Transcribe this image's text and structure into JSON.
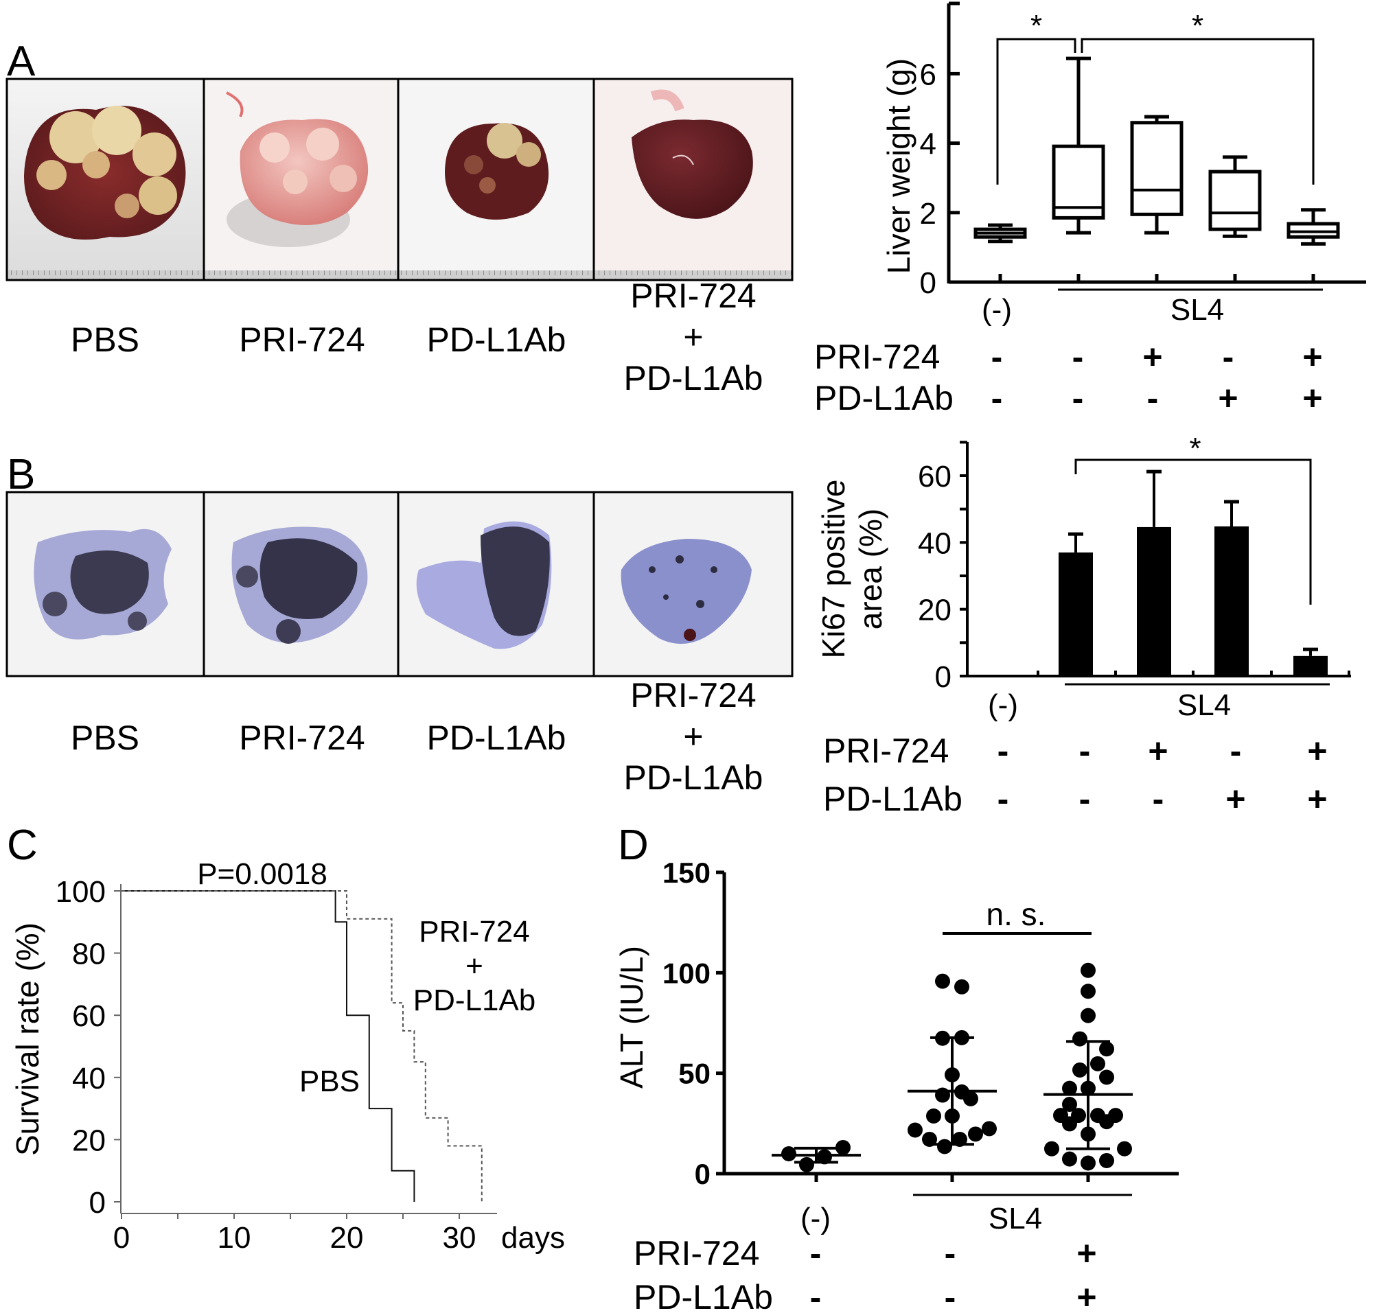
{
  "panels": {
    "a": "A",
    "b": "B",
    "c": "C",
    "d": "D"
  },
  "photos_a": {
    "labels": [
      "PBS",
      "PRI-724",
      "PD-L1Ab"
    ],
    "combo": [
      "PRI-724",
      "+",
      "PD-L1Ab"
    ]
  },
  "photos_b": {
    "labels": [
      "PBS",
      "PRI-724",
      "PD-L1Ab"
    ],
    "combo": [
      "PRI-724",
      "+",
      "PD-L1Ab"
    ]
  },
  "chart_data": [
    {
      "type": "box",
      "ylabel": "Liver weight (g)",
      "ylim": [
        0,
        8
      ],
      "yticks": [
        0,
        2,
        4,
        6
      ],
      "boxes": [
        {
          "min": 1.17,
          "q1": 1.3,
          "median": 1.41,
          "q3": 1.52,
          "max": 1.64
        },
        {
          "min": 1.42,
          "q1": 1.85,
          "median": 2.15,
          "q3": 3.91,
          "max": 6.44
        },
        {
          "min": 1.42,
          "q1": 1.95,
          "median": 2.65,
          "q3": 4.59,
          "max": 4.76
        },
        {
          "min": 1.32,
          "q1": 1.52,
          "median": 1.99,
          "q3": 3.18,
          "max": 3.6
        },
        {
          "min": 1.1,
          "q1": 1.3,
          "median": 1.45,
          "q3": 1.68,
          "max": 2.08
        }
      ],
      "group_labels": {
        "control": "(-)",
        "treated": "SL4"
      },
      "treatments": [
        {
          "name": "PRI-724",
          "values": [
            "-",
            "-",
            "+",
            "-",
            "+"
          ]
        },
        {
          "name": "PD-L1Ab",
          "values": [
            "-",
            "-",
            "-",
            "+",
            "+"
          ]
        }
      ],
      "significance": [
        {
          "from": 0,
          "to": 1,
          "label": "*"
        },
        {
          "from": 1,
          "to": 4,
          "label": "*"
        }
      ]
    },
    {
      "type": "bar",
      "ylabel": [
        "Ki67 positive",
        "area (%)"
      ],
      "ylim": [
        0,
        70
      ],
      "yticks": [
        0,
        20,
        40,
        60
      ],
      "values": [
        0,
        37,
        44.6,
        44.8,
        6
      ],
      "error_upper": [
        0,
        42.5,
        61.2,
        52.2,
        8
      ],
      "group_labels": {
        "control": "(-)",
        "treated": "SL4"
      },
      "treatments": [
        {
          "name": "PRI-724",
          "values": [
            "-",
            "-",
            "+",
            "-",
            "+"
          ]
        },
        {
          "name": "PD-L1Ab",
          "values": [
            "-",
            "-",
            "-",
            "+",
            "+"
          ]
        }
      ],
      "significance": [
        {
          "from": 1,
          "to": 4,
          "label": "*"
        }
      ]
    },
    {
      "type": "line",
      "subtype": "kaplan-meier step",
      "ylabel": "Survival rate (%)",
      "xlabel": "days",
      "xlim": [
        0,
        33
      ],
      "ylim": [
        0,
        100
      ],
      "xticks": [
        0,
        10,
        20,
        30
      ],
      "yticks": [
        0,
        20,
        40,
        60,
        80,
        100
      ],
      "annotation": "P=0.0018",
      "series": [
        {
          "name": "PBS",
          "style": "solid",
          "steps": [
            [
              0,
              100
            ],
            [
              19,
              90
            ],
            [
              20,
              60
            ],
            [
              22,
              30
            ],
            [
              24,
              10
            ],
            [
              26,
              0
            ]
          ]
        },
        {
          "name": [
            "PRI-724",
            "+",
            "PD-L1Ab"
          ],
          "style": "dashed",
          "steps": [
            [
              0,
              100
            ],
            [
              20,
              91
            ],
            [
              24,
              64
            ],
            [
              25,
              55
            ],
            [
              26,
              45
            ],
            [
              27,
              27
            ],
            [
              29,
              18
            ],
            [
              32,
              0
            ]
          ]
        }
      ]
    },
    {
      "type": "scatter",
      "ylabel": "ALT (IU/L)",
      "ylim": [
        0,
        150
      ],
      "yticks": [
        0,
        50,
        100,
        150
      ],
      "annotation": "n. s.",
      "groups": [
        {
          "points": [
            9.9,
            4.5,
            8.4,
            13.0
          ],
          "mean": 9.2,
          "sd_low": 5.7,
          "sd_high": 12.7
        },
        {
          "points": [
            95.8,
            93.0,
            67.4,
            67.7,
            49.2,
            39.1,
            40.7,
            37.3,
            28.7,
            28.7,
            21.7,
            22.4,
            17.1,
            17.1,
            19.7,
            13.5
          ],
          "mean": 41.1,
          "sd_low": 14.6,
          "sd_high": 67.7
        },
        {
          "points": [
            101.2,
            90.8,
            78.7,
            67.1,
            62.1,
            54.7,
            51.6,
            48.0,
            42.5,
            42.5,
            34.5,
            29.0,
            29.0,
            29.0,
            29.0,
            24.8,
            25.9,
            19.7,
            12.4,
            12.4,
            7.3,
            5.3,
            6.5
          ],
          "mean": 39.4,
          "sd_low": 12.4,
          "sd_high": 65.8
        }
      ],
      "group_labels": {
        "control": "(-)",
        "treated": "SL4"
      },
      "treatments": [
        {
          "name": "PRI-724",
          "values": [
            "-",
            "-",
            "+"
          ]
        },
        {
          "name": "PD-L1Ab",
          "values": [
            "-",
            "-",
            "+"
          ]
        }
      ]
    }
  ]
}
